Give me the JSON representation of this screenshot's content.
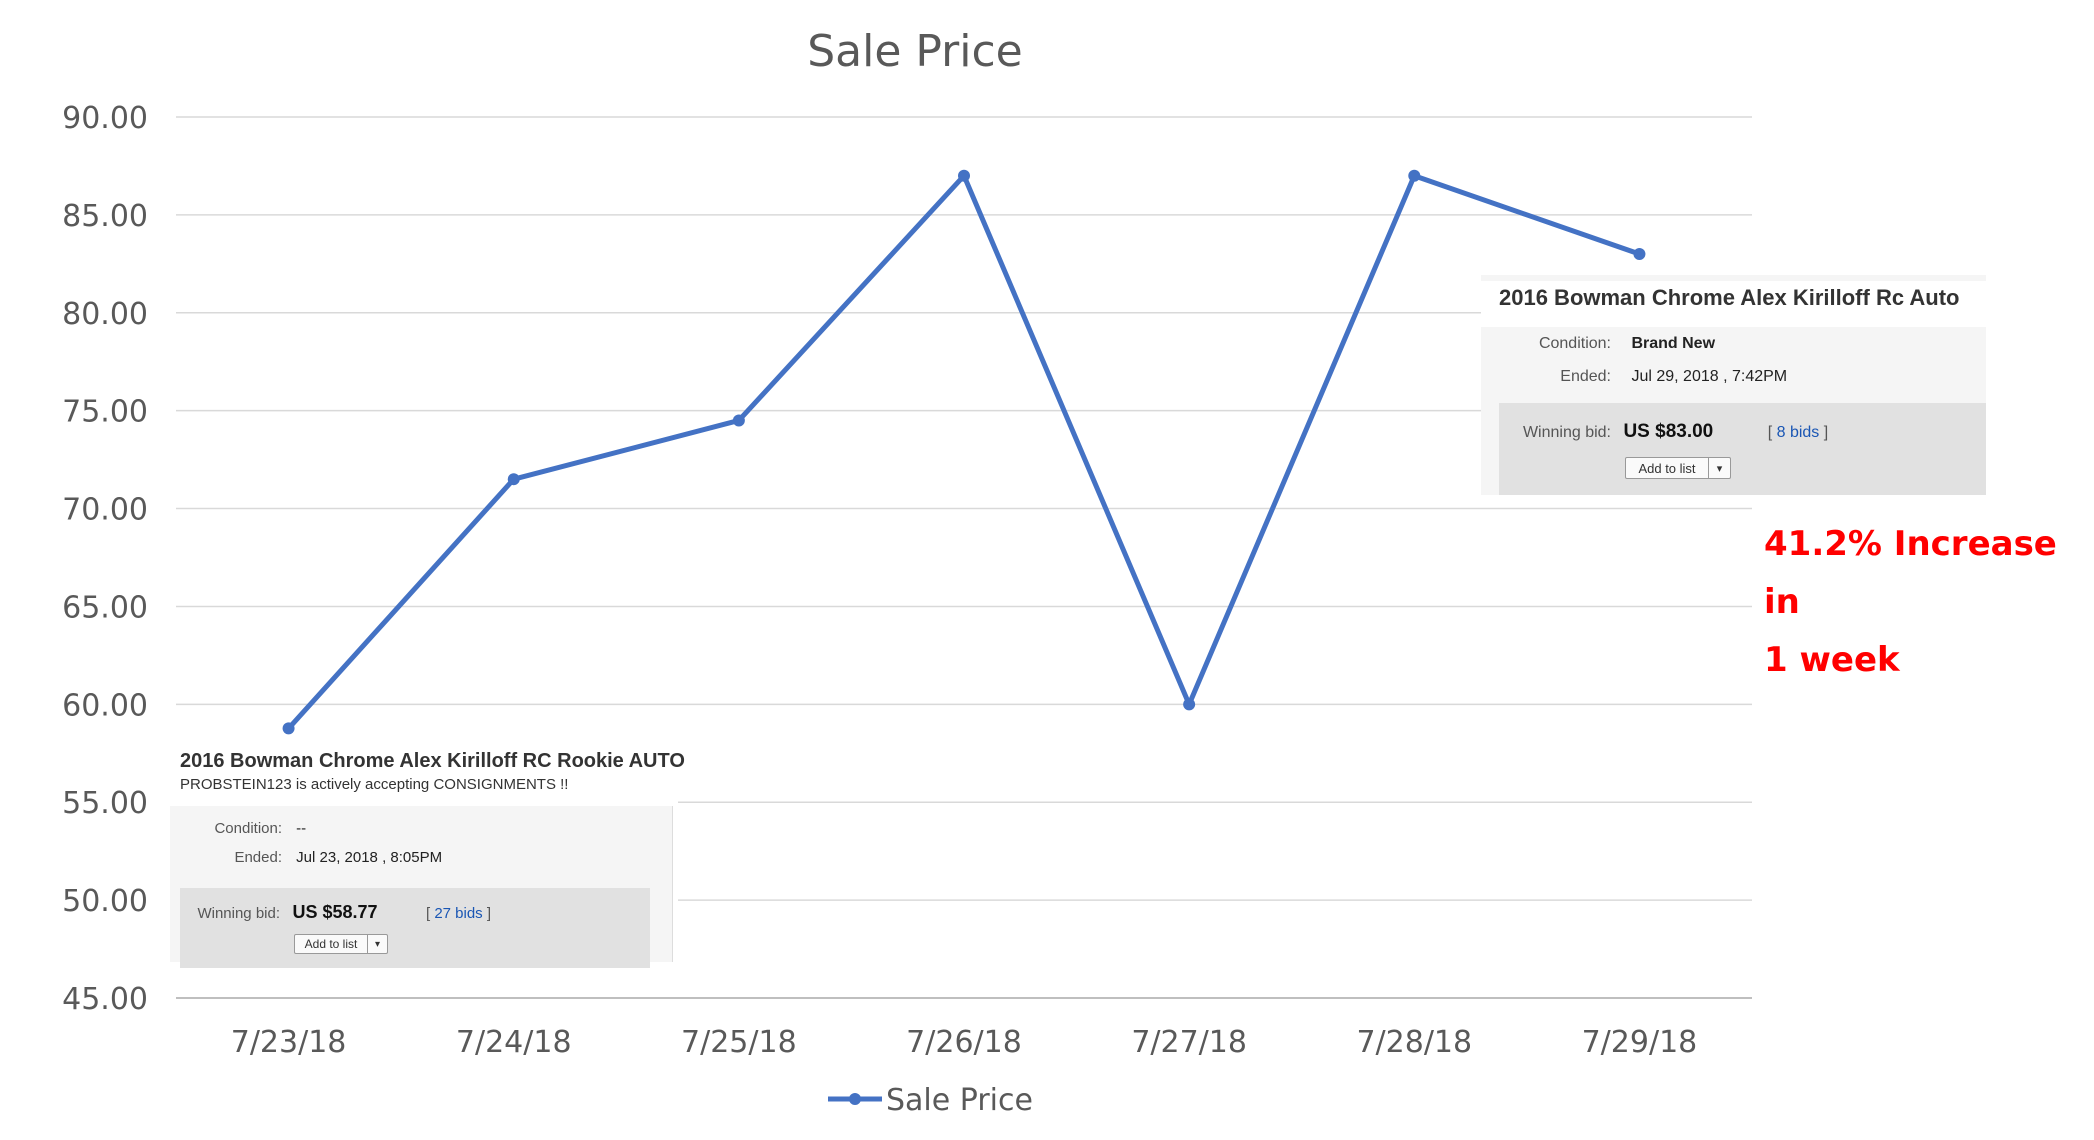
{
  "chart_data": {
    "type": "line",
    "title": "Sale Price",
    "categories": [
      "7/23/18",
      "7/24/18",
      "7/25/18",
      "7/26/18",
      "7/27/18",
      "7/28/18",
      "7/29/18"
    ],
    "series": [
      {
        "name": "Sale Price",
        "values": [
          58.77,
          71.5,
          74.5,
          87.0,
          60.0,
          87.0,
          83.0
        ],
        "color": "#4472c4"
      }
    ],
    "y_ticks": [
      "45.00",
      "50.00",
      "55.00",
      "60.00",
      "65.00",
      "70.00",
      "75.00",
      "80.00",
      "85.00",
      "90.00"
    ],
    "ylim": [
      45,
      90
    ],
    "grid": true,
    "legend": "bottom"
  },
  "listing_left": {
    "title": "2016 Bowman Chrome Alex Kirilloff RC Rookie AUTO",
    "subtitle": "PROBSTEIN123 is actively accepting CONSIGNMENTS !!",
    "condition_label": "Condition:",
    "condition_value": "--",
    "ended_label": "Ended:",
    "ended_value": "Jul 23, 2018 , 8:05PM",
    "bid_label": "Winning bid:",
    "price": "US $58.77",
    "bids_open": "[",
    "bids_link": "27 bids",
    "bids_close": "]",
    "add_to_list": "Add to list"
  },
  "listing_right": {
    "title": "2016 Bowman Chrome Alex Kirilloff Rc Auto",
    "condition_label": "Condition:",
    "condition_value": "Brand New",
    "ended_label": "Ended:",
    "ended_value": "Jul 29, 2018 , 7:42PM",
    "bid_label": "Winning bid:",
    "price": "US $83.00",
    "bids_open": "[",
    "bids_link": "8 bids",
    "bids_close": "]",
    "add_to_list": "Add to list"
  },
  "annotation": {
    "line1": "41.2% Increase in",
    "line2": "1 week"
  }
}
